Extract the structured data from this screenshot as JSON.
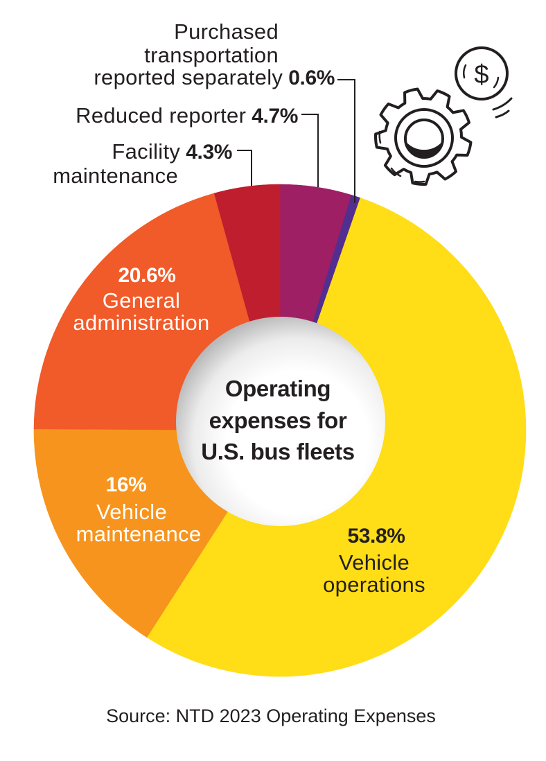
{
  "chart_data": {
    "type": "pie",
    "variant": "donut",
    "title": "Operating expenses for U.S. bus fleets",
    "unit": "%",
    "start_angle": "12 o'clock, clockwise",
    "categories": [
      "Reduced reporter",
      "Purchased transportation reported separately",
      "Vehicle operations",
      "Vehicle maintenance",
      "General administration",
      "Facility maintenance"
    ],
    "values": [
      4.7,
      0.6,
      53.8,
      16,
      20.6,
      4.3
    ],
    "colors": [
      "#9E1F63",
      "#522E91",
      "#FFDD17",
      "#F7941D",
      "#F15A29",
      "#BE1E2D"
    ],
    "legend": "none (direct labels)",
    "source": "Source: NTD 2023 Operating Expenses"
  },
  "center_title": {
    "line1": "Operating",
    "line2": "expenses for",
    "line3": "U.S. bus fleets"
  },
  "labels": {
    "purchased": {
      "line1": "Purchased",
      "line2": "transportation",
      "line3": "reported separately",
      "value": "0.6%"
    },
    "reduced": {
      "text": "Reduced reporter",
      "value": "4.7%"
    },
    "facility": {
      "line1": "Facility",
      "value": "4.3%",
      "line2": "maintenance"
    },
    "general_admin": {
      "value": "20.6%",
      "line1": "General",
      "line2": "administration"
    },
    "vehicle_maintenance": {
      "value": "16%",
      "line1": "Vehicle",
      "line2": "maintenance"
    },
    "vehicle_operations": {
      "value": "53.8%",
      "line1": "Vehicle",
      "line2": "operations"
    }
  },
  "source": "Source: NTD 2023 Operating Expenses",
  "icons": {
    "gear": "gear-icon",
    "coin": "dollar-coin-icon",
    "coin_symbol": "$"
  }
}
